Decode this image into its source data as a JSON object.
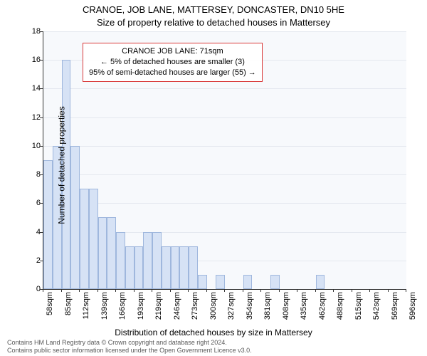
{
  "title_main": "CRANOE, JOB LANE, MATTERSEY, DONCASTER, DN10 5HE",
  "title_sub": "Size of property relative to detached houses in Mattersey",
  "y_label": "Number of detached properties",
  "x_label": "Distribution of detached houses by size in Mattersey",
  "footer_line1": "Contains HM Land Registry data © Crown copyright and database right 2024.",
  "footer_line2": "Contains public sector information licensed under the Open Government Licence v3.0.",
  "annotation": {
    "line1": "CRANOE JOB LANE: 71sqm",
    "line2": "← 5% of detached houses are smaller (3)",
    "line3": "95% of semi-detached houses are larger (55) →"
  },
  "chart": {
    "type": "histogram",
    "background_color": "#f7f9fc",
    "grid_color": "#e4e8ef",
    "axis_color": "#333333",
    "bar_fill": "#d6e2f5",
    "bar_border": "#9fb7dd",
    "anno_border": "#d93a3a",
    "y": {
      "min": 0,
      "max": 18,
      "step": 2
    },
    "x_tick_labels": [
      "58sqm",
      "85sqm",
      "112sqm",
      "139sqm",
      "166sqm",
      "193sqm",
      "219sqm",
      "246sqm",
      "273sqm",
      "300sqm",
      "327sqm",
      "354sqm",
      "381sqm",
      "408sqm",
      "435sqm",
      "462sqm",
      "488sqm",
      "515sqm",
      "542sqm",
      "569sqm",
      "596sqm"
    ],
    "x_tick_positions": [
      0.0,
      0.05,
      0.1,
      0.15,
      0.2,
      0.25,
      0.3,
      0.35,
      0.4,
      0.45,
      0.5,
      0.55,
      0.6,
      0.65,
      0.7,
      0.75,
      0.8,
      0.85,
      0.9,
      0.95,
      1.0
    ],
    "bars": [
      {
        "x0": 0.0,
        "x1": 0.025,
        "h": 9
      },
      {
        "x0": 0.025,
        "x1": 0.05,
        "h": 10
      },
      {
        "x0": 0.05,
        "x1": 0.075,
        "h": 16
      },
      {
        "x0": 0.075,
        "x1": 0.1,
        "h": 10
      },
      {
        "x0": 0.1,
        "x1": 0.125,
        "h": 7
      },
      {
        "x0": 0.125,
        "x1": 0.15,
        "h": 7
      },
      {
        "x0": 0.15,
        "x1": 0.175,
        "h": 5
      },
      {
        "x0": 0.175,
        "x1": 0.2,
        "h": 5
      },
      {
        "x0": 0.2,
        "x1": 0.225,
        "h": 4
      },
      {
        "x0": 0.225,
        "x1": 0.25,
        "h": 3
      },
      {
        "x0": 0.25,
        "x1": 0.275,
        "h": 3
      },
      {
        "x0": 0.275,
        "x1": 0.3,
        "h": 4
      },
      {
        "x0": 0.3,
        "x1": 0.325,
        "h": 4
      },
      {
        "x0": 0.325,
        "x1": 0.35,
        "h": 3
      },
      {
        "x0": 0.35,
        "x1": 0.375,
        "h": 3
      },
      {
        "x0": 0.375,
        "x1": 0.4,
        "h": 3
      },
      {
        "x0": 0.4,
        "x1": 0.425,
        "h": 3
      },
      {
        "x0": 0.425,
        "x1": 0.45,
        "h": 1
      },
      {
        "x0": 0.475,
        "x1": 0.5,
        "h": 1
      },
      {
        "x0": 0.55,
        "x1": 0.575,
        "h": 1
      },
      {
        "x0": 0.625,
        "x1": 0.65,
        "h": 1
      },
      {
        "x0": 0.75,
        "x1": 0.775,
        "h": 1
      }
    ]
  }
}
